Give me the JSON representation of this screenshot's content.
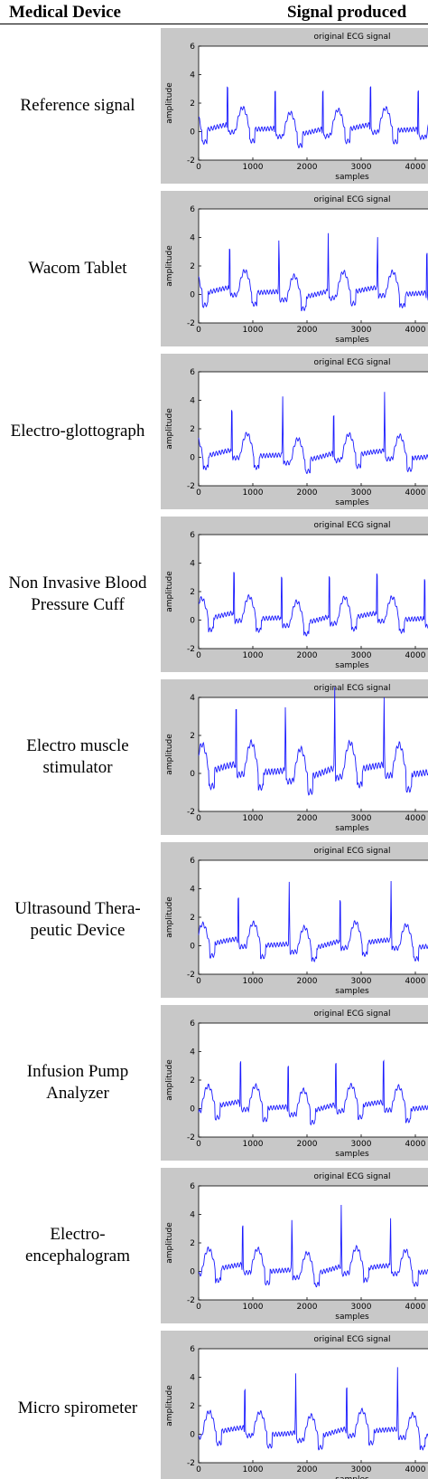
{
  "header": {
    "device": "Medical Device",
    "signal": "Signal produced"
  },
  "rows": [
    {
      "device": "Reference signal",
      "plot": {
        "title": "original ECG signal",
        "xlabel": "samples",
        "ylabel": "amplitude",
        "xticks": [
          0,
          1000,
          2000,
          3000,
          4000
        ],
        "yticks": [
          -2,
          0,
          2,
          4,
          6
        ]
      }
    },
    {
      "device": "Wacom Tablet",
      "plot": {
        "title": "original ECG signal",
        "xlabel": "samples",
        "ylabel": "amplitude",
        "xticks": [
          0,
          1000,
          2000,
          3000,
          4000
        ],
        "yticks": [
          -2,
          0,
          2,
          4,
          6
        ]
      }
    },
    {
      "device": "Electro-glottograph",
      "plot": {
        "title": "original ECG signal",
        "xlabel": "samples",
        "ylabel": "amplitude",
        "xticks": [
          0,
          1000,
          2000,
          3000,
          4000
        ],
        "yticks": [
          -2,
          0,
          2,
          4,
          6
        ]
      }
    },
    {
      "device": "Non Invasive Blood Pressure Cuff",
      "plot": {
        "title": "original ECG signal",
        "xlabel": "samples",
        "ylabel": "amplitude",
        "xticks": [
          0,
          1000,
          2000,
          3000,
          4000
        ],
        "yticks": [
          -2,
          0,
          2,
          4,
          6
        ]
      }
    },
    {
      "device": "Electro muscle stimulator",
      "plot": {
        "title": "original ECG signal",
        "xlabel": "samples",
        "ylabel": "amplitude",
        "xticks": [
          0,
          1000,
          2000,
          3000,
          4000
        ],
        "yticks": [
          -2,
          0,
          2,
          4
        ]
      }
    },
    {
      "device": "Ultrasound Thera-peutic Device",
      "plot": {
        "title": "original ECG signal",
        "xlabel": "samples",
        "ylabel": "amplitude",
        "xticks": [
          0,
          1000,
          2000,
          3000,
          4000
        ],
        "yticks": [
          -2,
          0,
          2,
          4,
          6
        ]
      }
    },
    {
      "device": "Infusion Pump Analyzer",
      "plot": {
        "title": "original ECG signal",
        "xlabel": "samples",
        "ylabel": "amplitude",
        "xticks": [
          0,
          1000,
          2000,
          3000,
          4000
        ],
        "yticks": [
          -2,
          0,
          2,
          4,
          6
        ]
      }
    },
    {
      "device": "Electro-encephalogram",
      "plot": {
        "title": "original ECG signal",
        "xlabel": "samples",
        "ylabel": "amplitude",
        "xticks": [
          0,
          1000,
          2000,
          3000,
          4000
        ],
        "yticks": [
          -2,
          0,
          2,
          4,
          6
        ]
      }
    },
    {
      "device": "Micro spirometer",
      "plot": {
        "title": "original ECG signal",
        "xlabel": "samples",
        "ylabel": "amplitude",
        "xticks": [
          0,
          1000,
          2000,
          3000,
          4000
        ],
        "yticks": [
          -2,
          0,
          2,
          4,
          6
        ]
      }
    }
  ]
}
